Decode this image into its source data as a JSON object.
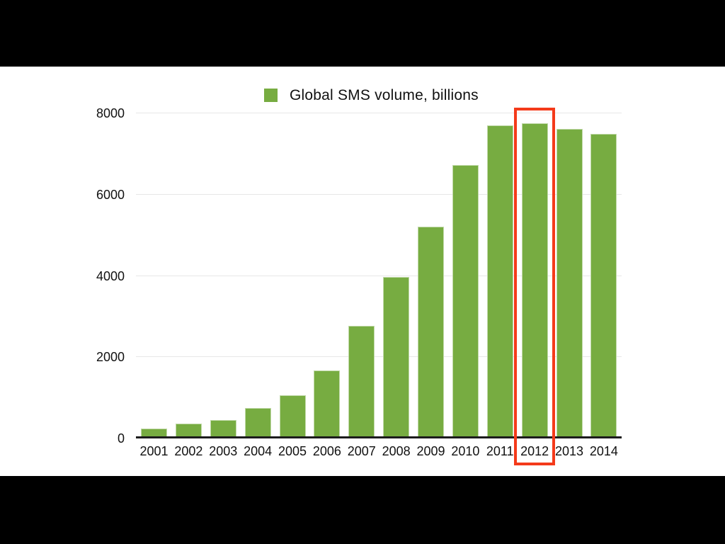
{
  "letterbox": {
    "color": "#000000"
  },
  "legend": {
    "label": "Global SMS volume, billions",
    "swatch_color": "#77ac41"
  },
  "chart_data": {
    "type": "bar",
    "title": "Global SMS volume, billions",
    "categories": [
      "2001",
      "2002",
      "2003",
      "2004",
      "2005",
      "2006",
      "2007",
      "2008",
      "2009",
      "2010",
      "2011",
      "2012",
      "2013",
      "2014"
    ],
    "values": [
      230,
      350,
      430,
      730,
      1040,
      1650,
      2750,
      3950,
      5200,
      6710,
      7690,
      7740,
      7600,
      7480
    ],
    "xlabel": "",
    "ylabel": "",
    "ylim": [
      0,
      8000
    ],
    "yticks": [
      0,
      2000,
      4000,
      6000,
      8000
    ],
    "grid": true,
    "legend_position": "top-center",
    "bar_color": "#77ac41",
    "bar_edge_color": "rgba(255,255,255,0.55)",
    "gridline_color": "#e7e7e7",
    "axis_color": "#1c1c1c",
    "tick_color": "#111111",
    "annotation": {
      "type": "highlight-box",
      "category": "2012",
      "color": "#f43a1a",
      "note": "red rectangle around 2012 bar and its axis label"
    }
  }
}
